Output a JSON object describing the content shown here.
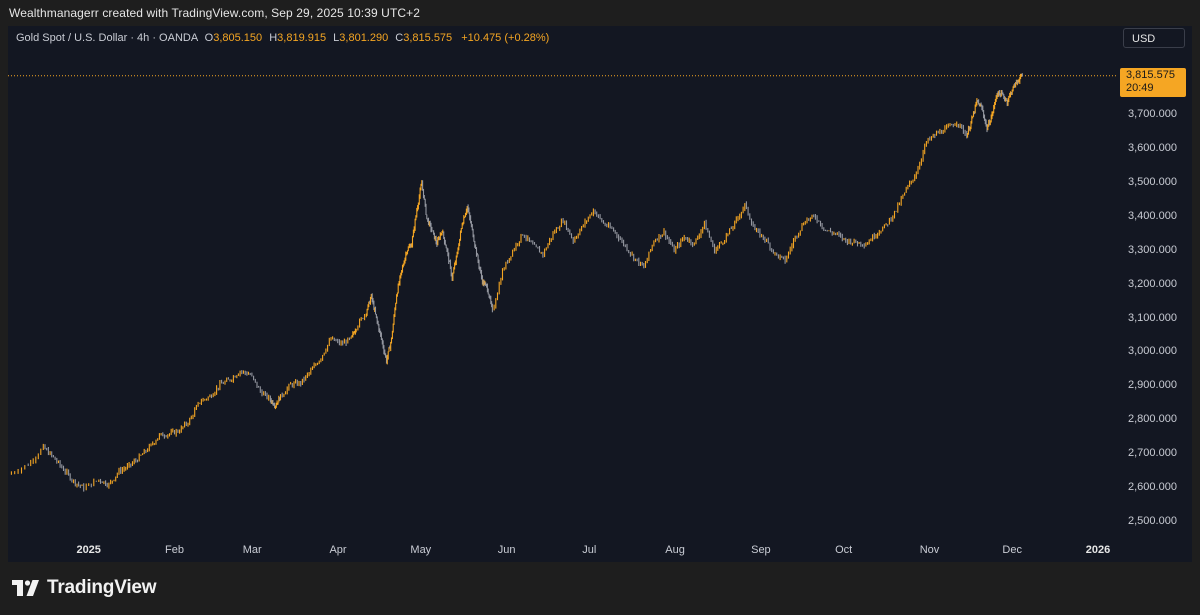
{
  "header": {
    "attribution": "Wealthmanagerr created with TradingView.com, Sep 29, 2025 10:39 UTC+2"
  },
  "legend": {
    "symbol": "Gold Spot / U.S. Dollar · 4h · OANDA",
    "open_label": "O",
    "open": "3,805.150",
    "high_label": "H",
    "high": "3,819.915",
    "low_label": "L",
    "low": "3,801.290",
    "close_label": "C",
    "close": "3,815.575",
    "change": "+10.475 (+0.28%)"
  },
  "currency_button": "USD",
  "price_tag": {
    "price": "3,815.575",
    "countdown": "20:49"
  },
  "brand": {
    "logo_text": "TradingView",
    "logo_icon": "tradingview-logo-icon"
  },
  "colors": {
    "accent": "#f5a623",
    "chart_background": "#131722",
    "frame_background": "#1e1e1e",
    "candle_up": "#f5a623",
    "candle_down": "#9598a1"
  },
  "chart_data": {
    "type": "line",
    "series": [
      {
        "values": [
          [
            2024.92,
            2640
          ],
          [
            2024.94,
            2670
          ],
          [
            2024.955,
            2720
          ],
          [
            2024.965,
            2690
          ],
          [
            2024.975,
            2655
          ],
          [
            2024.985,
            2620
          ],
          [
            2024.995,
            2600
          ],
          [
            2025.01,
            2625
          ],
          [
            2025.02,
            2610
          ],
          [
            2025.03,
            2650
          ],
          [
            2025.04,
            2665
          ],
          [
            2025.05,
            2690
          ],
          [
            2025.06,
            2720
          ],
          [
            2025.07,
            2755
          ],
          [
            2025.08,
            2760
          ],
          [
            2025.09,
            2770
          ],
          [
            2025.1,
            2800
          ],
          [
            2025.11,
            2855
          ],
          [
            2025.12,
            2870
          ],
          [
            2025.13,
            2905
          ],
          [
            2025.14,
            2920
          ],
          [
            2025.15,
            2945
          ],
          [
            2025.16,
            2935
          ],
          [
            2025.17,
            2885
          ],
          [
            2025.18,
            2860
          ],
          [
            2025.185,
            2845
          ],
          [
            2025.19,
            2870
          ],
          [
            2025.2,
            2905
          ],
          [
            2025.21,
            2910
          ],
          [
            2025.22,
            2945
          ],
          [
            2025.23,
            2985
          ],
          [
            2025.24,
            3040
          ],
          [
            2025.25,
            3025
          ],
          [
            2025.26,
            3040
          ],
          [
            2025.265,
            3075
          ],
          [
            2025.275,
            3120
          ],
          [
            2025.28,
            3165
          ],
          [
            2025.285,
            3100
          ],
          [
            2025.29,
            3040
          ],
          [
            2025.295,
            2975
          ],
          [
            2025.3,
            3040
          ],
          [
            2025.305,
            3170
          ],
          [
            2025.31,
            3240
          ],
          [
            2025.315,
            3300
          ],
          [
            2025.32,
            3320
          ],
          [
            2025.325,
            3420
          ],
          [
            2025.33,
            3500
          ],
          [
            2025.335,
            3395
          ],
          [
            2025.34,
            3360
          ],
          [
            2025.345,
            3320
          ],
          [
            2025.35,
            3360
          ],
          [
            2025.355,
            3300
          ],
          [
            2025.36,
            3220
          ],
          [
            2025.365,
            3290
          ],
          [
            2025.37,
            3380
          ],
          [
            2025.375,
            3430
          ],
          [
            2025.38,
            3360
          ],
          [
            2025.385,
            3280
          ],
          [
            2025.39,
            3210
          ],
          [
            2025.395,
            3190
          ],
          [
            2025.4,
            3120
          ],
          [
            2025.41,
            3240
          ],
          [
            2025.42,
            3300
          ],
          [
            2025.43,
            3350
          ],
          [
            2025.44,
            3315
          ],
          [
            2025.45,
            3290
          ],
          [
            2025.46,
            3350
          ],
          [
            2025.47,
            3390
          ],
          [
            2025.48,
            3330
          ],
          [
            2025.49,
            3375
          ],
          [
            2025.5,
            3420
          ],
          [
            2025.51,
            3380
          ],
          [
            2025.52,
            3360
          ],
          [
            2025.53,
            3320
          ],
          [
            2025.54,
            3280
          ],
          [
            2025.55,
            3250
          ],
          [
            2025.56,
            3330
          ],
          [
            2025.57,
            3355
          ],
          [
            2025.58,
            3300
          ],
          [
            2025.59,
            3340
          ],
          [
            2025.6,
            3320
          ],
          [
            2025.61,
            3380
          ],
          [
            2025.62,
            3300
          ],
          [
            2025.63,
            3335
          ],
          [
            2025.64,
            3380
          ],
          [
            2025.65,
            3435
          ],
          [
            2025.66,
            3360
          ],
          [
            2025.67,
            3335
          ],
          [
            2025.68,
            3290
          ],
          [
            2025.69,
            3270
          ],
          [
            2025.7,
            3340
          ],
          [
            2025.71,
            3390
          ],
          [
            2025.72,
            3400
          ],
          [
            2025.73,
            3360
          ],
          [
            2025.74,
            3350
          ],
          [
            2025.75,
            3330
          ],
          [
            2025.76,
            3325
          ],
          [
            2025.77,
            3320
          ],
          [
            2025.78,
            3350
          ],
          [
            2025.79,
            3375
          ],
          [
            2025.8,
            3420
          ],
          [
            2025.81,
            3480
          ],
          [
            2025.82,
            3530
          ],
          [
            2025.83,
            3620
          ],
          [
            2025.84,
            3645
          ],
          [
            2025.85,
            3660
          ],
          [
            2025.86,
            3680
          ],
          [
            2025.87,
            3640
          ],
          [
            2025.875,
            3685
          ],
          [
            2025.88,
            3740
          ],
          [
            2025.885,
            3720
          ],
          [
            2025.89,
            3660
          ],
          [
            2025.895,
            3700
          ],
          [
            2025.9,
            3765
          ],
          [
            2025.905,
            3760
          ],
          [
            2025.91,
            3740
          ],
          [
            2025.915,
            3775
          ],
          [
            2025.92,
            3800
          ],
          [
            2025.925,
            3815.575
          ]
        ]
      }
    ],
    "ylim": [
      2450,
      3850
    ],
    "yticks": [
      "2,500.000",
      "2,600.000",
      "2,700.000",
      "2,800.000",
      "2,900.000",
      "3,000.000",
      "3,100.000",
      "3,200.000",
      "3,300.000",
      "3,400.000",
      "3,500.000",
      "3,600.000",
      "3,700.000"
    ],
    "yticks_values": [
      2500,
      2600,
      2700,
      2800,
      2900,
      3000,
      3100,
      3200,
      3300,
      3400,
      3500,
      3600,
      3700
    ],
    "xticks": [
      {
        "label": "2025",
        "bold": true,
        "pos": 2025.0
      },
      {
        "label": "Feb",
        "bold": false,
        "pos": 2025.085
      },
      {
        "label": "Mar",
        "bold": false,
        "pos": 2025.162
      },
      {
        "label": "Apr",
        "bold": false,
        "pos": 2025.247
      },
      {
        "label": "May",
        "bold": false,
        "pos": 2025.329
      },
      {
        "label": "Jun",
        "bold": false,
        "pos": 2025.414
      },
      {
        "label": "Jul",
        "bold": false,
        "pos": 2025.496
      },
      {
        "label": "Aug",
        "bold": false,
        "pos": 2025.581
      },
      {
        "label": "Sep",
        "bold": false,
        "pos": 2025.666
      },
      {
        "label": "Oct",
        "bold": false,
        "pos": 2025.748
      },
      {
        "label": "Nov",
        "bold": false,
        "pos": 2025.833
      },
      {
        "label": "Dec",
        "bold": false,
        "pos": 2025.915
      },
      {
        "label": "2026",
        "bold": true,
        "pos": 2026.0
      }
    ],
    "xlim": [
      2024.92,
      2026.0
    ],
    "last_price": 3815.575
  }
}
